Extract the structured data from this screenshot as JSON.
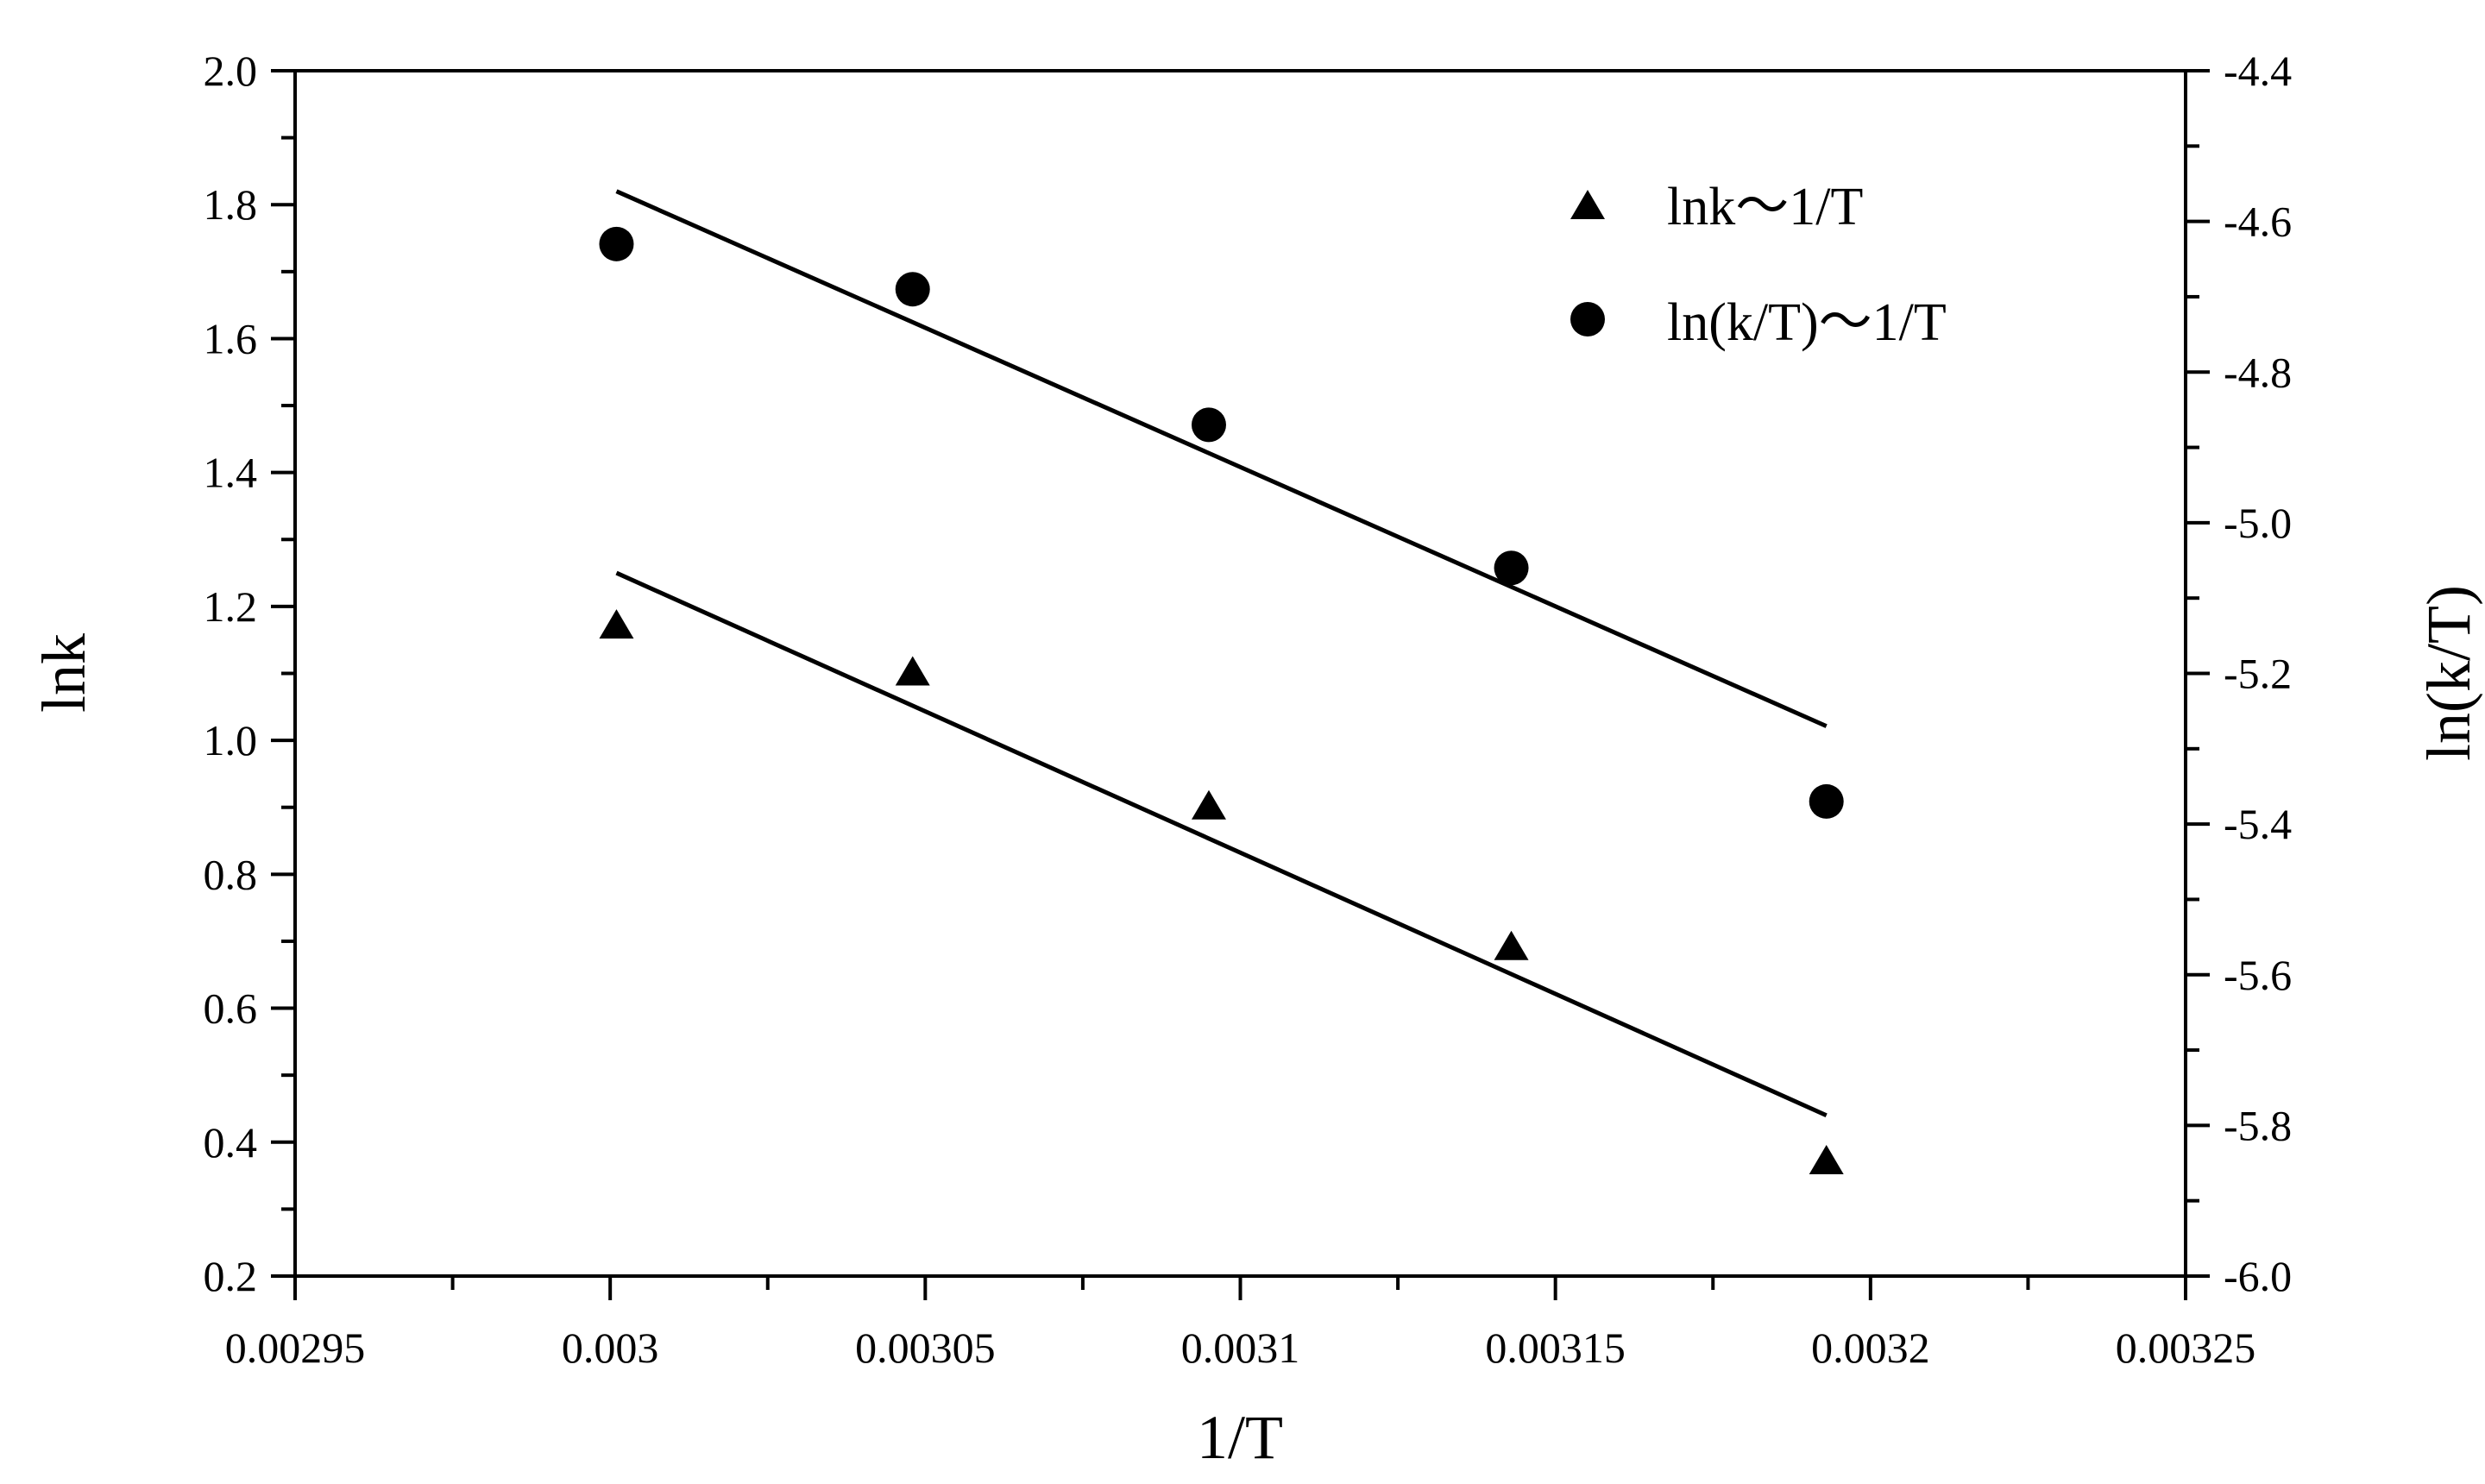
{
  "chart_data": {
    "type": "scatter",
    "title": "",
    "xlabel": "1/T",
    "ylabel_left": "lnk",
    "ylabel_right": "ln(k/T)",
    "xlim": [
      0.00295,
      0.00325
    ],
    "ylim_left": [
      0.2,
      2.0
    ],
    "ylim_right": [
      -6.0,
      -4.4
    ],
    "x_ticks": [
      "0.00295",
      "0.003",
      "0.00305",
      "0.0031",
      "0.00315",
      "0.0032",
      "0.00325"
    ],
    "x_tick_values": [
      0.00295,
      0.003,
      0.00305,
      0.0031,
      0.00315,
      0.0032,
      0.00325
    ],
    "y_left_ticks": [
      "0.2",
      "0.4",
      "0.6",
      "0.8",
      "1.0",
      "1.2",
      "1.4",
      "1.6",
      "1.8",
      "2.0"
    ],
    "y_left_tick_values": [
      0.2,
      0.4,
      0.6,
      0.8,
      1.0,
      1.2,
      1.4,
      1.6,
      1.8,
      2.0
    ],
    "y_right_ticks": [
      "-6.0",
      "-5.8",
      "-5.6",
      "-5.4",
      "-5.2",
      "-5.0",
      "-4.8",
      "-4.6",
      "-4.4"
    ],
    "y_right_tick_values": [
      -6.0,
      -5.8,
      -5.6,
      -5.4,
      -5.2,
      -5.0,
      -4.8,
      -4.6,
      -4.4
    ],
    "grid": false,
    "legend_position": "top-right",
    "series": [
      {
        "name": "lnk～1/T",
        "marker": "triangle",
        "axis": "left",
        "x": [
          0.003001,
          0.003048,
          0.003095,
          0.003143,
          0.003193
        ],
        "y": [
          1.17,
          1.1,
          0.9,
          0.69,
          0.37
        ],
        "fit": {
          "x": [
            0.003001,
            0.003193
          ],
          "y": [
            1.25,
            0.44
          ]
        }
      },
      {
        "name": "ln(k/T)～1/T",
        "marker": "circle",
        "axis": "right",
        "x": [
          0.003001,
          0.003048,
          0.003095,
          0.003143,
          0.003193
        ],
        "y": [
          -4.63,
          -4.69,
          -4.87,
          -5.06,
          -5.37
        ],
        "fit": {
          "x": [
            0.003001,
            0.003193
          ],
          "y": [
            -4.56,
            -5.27
          ]
        }
      }
    ]
  }
}
